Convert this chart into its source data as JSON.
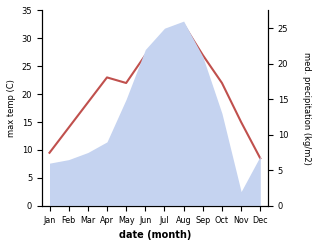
{
  "months": [
    "Jan",
    "Feb",
    "Mar",
    "Apr",
    "May",
    "Jun",
    "Jul",
    "Aug",
    "Sep",
    "Oct",
    "Nov",
    "Dec"
  ],
  "temp": [
    9.5,
    14.0,
    18.5,
    23.0,
    22.0,
    27.0,
    30.5,
    32.5,
    27.0,
    22.0,
    15.0,
    8.5
  ],
  "precip": [
    6.0,
    6.5,
    7.5,
    9.0,
    15.0,
    22.0,
    25.0,
    26.0,
    21.0,
    13.0,
    2.0,
    7.0
  ],
  "temp_color": "#c0504d",
  "precip_fill_color": "#c5d3f0",
  "temp_ylim": [
    0,
    35
  ],
  "precip_ylim": [
    0,
    27.5
  ],
  "temp_yticks": [
    0,
    5,
    10,
    15,
    20,
    25,
    30,
    35
  ],
  "precip_yticks": [
    0,
    5,
    10,
    15,
    20,
    25
  ],
  "temp_ylabel": "max temp (C)",
  "precip_ylabel": "med. precipitation (kg/m2)",
  "xlabel": "date (month)"
}
